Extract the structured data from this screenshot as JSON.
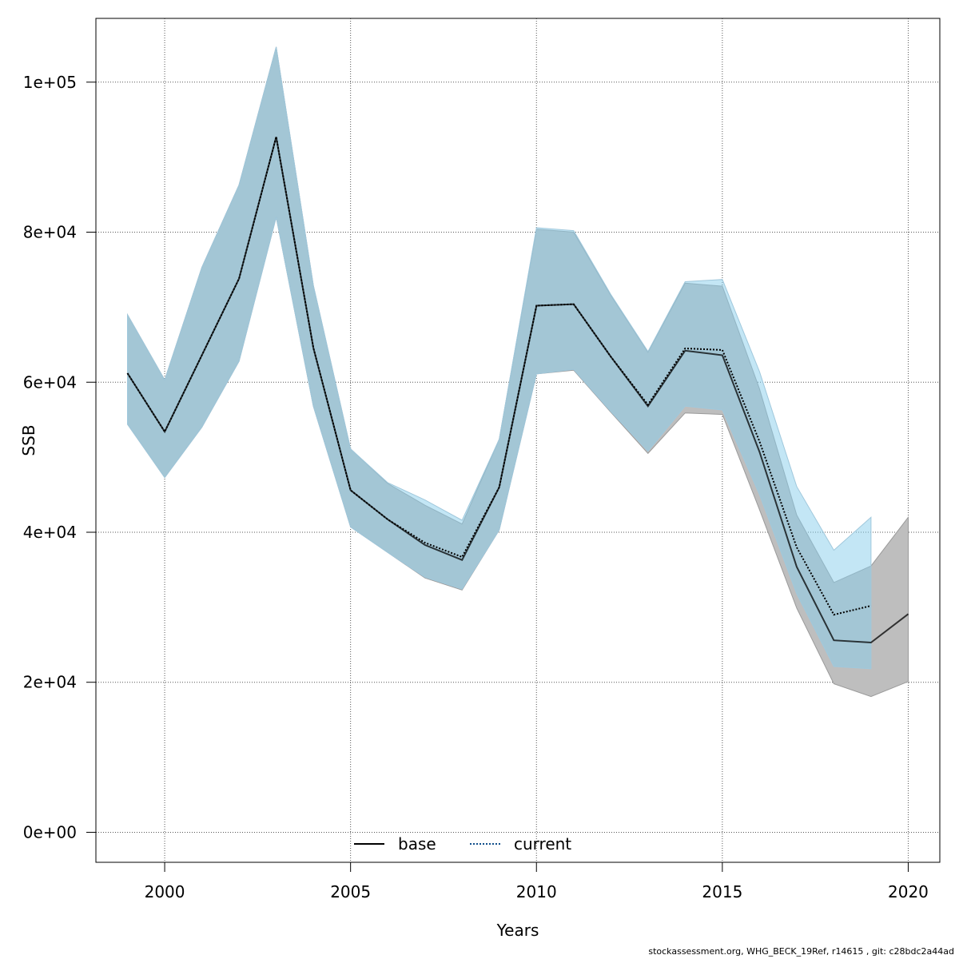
{
  "footer_text": "stockassessment.org, WHG_BECK_19Ref, r14615 , git: c28bdc2a44ad",
  "chart_data": {
    "type": "line",
    "title": "",
    "xlabel": "Years",
    "ylabel": "SSB",
    "xlim": [
      1998.15,
      2020.85
    ],
    "ylim": [
      -4000,
      108500
    ],
    "x_ticks": [
      2000,
      2005,
      2010,
      2015,
      2020
    ],
    "x_tick_labels": [
      "2000",
      "2005",
      "2010",
      "2015",
      "2020"
    ],
    "y_ticks": [
      0,
      20000,
      40000,
      60000,
      80000,
      100000
    ],
    "y_tick_labels": [
      "0e+00",
      "2e+04",
      "4e+04",
      "6e+04",
      "8e+04",
      "1e+05"
    ],
    "grid": true,
    "legend_position": "bottom-center",
    "colors": {
      "base_band": "#bebebe",
      "current_band": "#87ceeb",
      "base_line": "#000000",
      "current_line": "#104e8b"
    },
    "series": [
      {
        "name": "base",
        "style": "solid",
        "x": [
          1999,
          2000,
          2001,
          2002,
          2003,
          2004,
          2005,
          2006,
          2007,
          2008,
          2009,
          2010,
          2011,
          2012,
          2013,
          2014,
          2015,
          2016,
          2017,
          2018,
          2019,
          2020
        ],
        "values": [
          61200,
          53400,
          63600,
          73800,
          92700,
          64600,
          45600,
          41700,
          38300,
          36300,
          46000,
          70200,
          70400,
          63400,
          56800,
          64200,
          63600,
          50700,
          35400,
          25600,
          25300,
          29100
        ],
        "lower": [
          54400,
          47300,
          54000,
          62800,
          82000,
          56800,
          40700,
          37300,
          33900,
          32300,
          40300,
          61100,
          61600,
          56000,
          50500,
          55900,
          55700,
          43000,
          29900,
          19800,
          18100,
          20100
        ],
        "upper": [
          69000,
          60300,
          75300,
          86300,
          104700,
          72900,
          51100,
          46500,
          43600,
          41100,
          52400,
          80400,
          80000,
          71600,
          64000,
          73200,
          72800,
          59100,
          42300,
          33300,
          35500,
          42000
        ]
      },
      {
        "name": "current",
        "style": "dotted",
        "x": [
          1999,
          2000,
          2001,
          2002,
          2003,
          2004,
          2005,
          2006,
          2007,
          2008,
          2009,
          2010,
          2011,
          2012,
          2013,
          2014,
          2015,
          2016,
          2017,
          2018,
          2019
        ],
        "values": [
          61200,
          53400,
          63600,
          73800,
          92700,
          64600,
          45600,
          41700,
          38600,
          36700,
          46000,
          70200,
          70400,
          63400,
          57000,
          64500,
          64300,
          52100,
          38000,
          29000,
          30200
        ],
        "lower": [
          54400,
          47300,
          54000,
          62800,
          82000,
          56800,
          40700,
          37300,
          34000,
          32400,
          40300,
          61100,
          61700,
          56100,
          50800,
          56800,
          56300,
          45000,
          31800,
          22100,
          21800
        ],
        "upper": [
          69000,
          60300,
          75300,
          86300,
          104700,
          72900,
          51100,
          46600,
          44300,
          41600,
          52400,
          80600,
          80200,
          71700,
          64100,
          73400,
          73700,
          61400,
          46100,
          37600,
          42000
        ]
      }
    ]
  }
}
